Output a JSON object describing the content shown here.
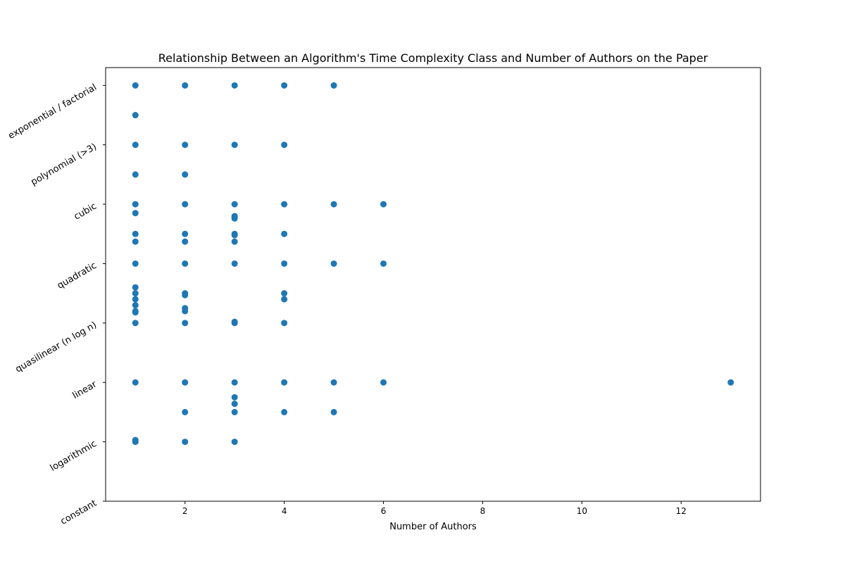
{
  "chart_data": {
    "type": "scatter",
    "title": "Relationship Between an Algorithm's Time Complexity Class and Number of Authors on the Paper",
    "xlabel": "Number of Authors",
    "ylabel": "",
    "xlim": [
      0.4,
      13.6
    ],
    "ylim": [
      0,
      7.3
    ],
    "x_ticks": [
      2,
      4,
      6,
      8,
      10,
      12
    ],
    "y_ticks": [
      {
        "value": 0,
        "label": "constant"
      },
      {
        "value": 1,
        "label": "logarithmic"
      },
      {
        "value": 2,
        "label": "linear"
      },
      {
        "value": 3,
        "label": "quasilinear (n log n)"
      },
      {
        "value": 4,
        "label": "quadratic"
      },
      {
        "value": 5,
        "label": "cubic"
      },
      {
        "value": 6,
        "label": "polynomial (>3)"
      },
      {
        "value": 7,
        "label": "exponential / factorial"
      }
    ],
    "grid": false,
    "marker_color": "#1f77b4",
    "points": [
      [
        1,
        7
      ],
      [
        2,
        7
      ],
      [
        3,
        7
      ],
      [
        4,
        7
      ],
      [
        5,
        7
      ],
      [
        1,
        6.5
      ],
      [
        1,
        6
      ],
      [
        2,
        6
      ],
      [
        3,
        6
      ],
      [
        4,
        6
      ],
      [
        1,
        5.5
      ],
      [
        2,
        5.5
      ],
      [
        1,
        5
      ],
      [
        2,
        5
      ],
      [
        3,
        5
      ],
      [
        4,
        5
      ],
      [
        5,
        5
      ],
      [
        6,
        5
      ],
      [
        1,
        4.85
      ],
      [
        3,
        4.8
      ],
      [
        3,
        4.78
      ],
      [
        3,
        4.76
      ],
      [
        1,
        4.5
      ],
      [
        2,
        4.5
      ],
      [
        3,
        4.5
      ],
      [
        4,
        4.5
      ],
      [
        3,
        4.48
      ],
      [
        1,
        4.37
      ],
      [
        2,
        4.37
      ],
      [
        3,
        4.37
      ],
      [
        1,
        4
      ],
      [
        2,
        4
      ],
      [
        3,
        4
      ],
      [
        4,
        4
      ],
      [
        5,
        4
      ],
      [
        6,
        4
      ],
      [
        1,
        3.6
      ],
      [
        1,
        3.5
      ],
      [
        1,
        3.4
      ],
      [
        1,
        3.3
      ],
      [
        1,
        3.2
      ],
      [
        1,
        3.18
      ],
      [
        2,
        3.5
      ],
      [
        2,
        3.47
      ],
      [
        2,
        3.25
      ],
      [
        2,
        3.2
      ],
      [
        4,
        3.5
      ],
      [
        4,
        3.4
      ],
      [
        1,
        3
      ],
      [
        2,
        3
      ],
      [
        3,
        3
      ],
      [
        3,
        3.02
      ],
      [
        4,
        3
      ],
      [
        1,
        2
      ],
      [
        2,
        2
      ],
      [
        3,
        2
      ],
      [
        4,
        2
      ],
      [
        5,
        2
      ],
      [
        6,
        2
      ],
      [
        13,
        2
      ],
      [
        3,
        1.75
      ],
      [
        3,
        1.64
      ],
      [
        2,
        1.5
      ],
      [
        3,
        1.5
      ],
      [
        4,
        1.5
      ],
      [
        5,
        1.5
      ],
      [
        1,
        1.03
      ],
      [
        1,
        1
      ],
      [
        2,
        1
      ],
      [
        3,
        1
      ]
    ]
  }
}
